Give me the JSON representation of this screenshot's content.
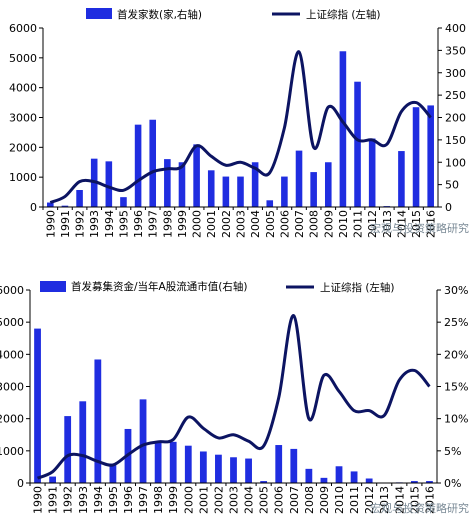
{
  "colors": {
    "bar": "#1f2de0",
    "line": "#0c1462",
    "axis": "#000000",
    "watermark": "#7a8a96"
  },
  "chart_data": [
    {
      "type": "bar",
      "categories": [
        "1990",
        "1991",
        "1992",
        "1993",
        "1994",
        "1995",
        "1996",
        "1997",
        "1998",
        "1999",
        "2000",
        "2001",
        "2002",
        "2003",
        "2004",
        "2005",
        "2006",
        "2007",
        "2008",
        "2009",
        "2010",
        "2011",
        "2012",
        "2013",
        "2014",
        "2015",
        "2016"
      ],
      "legend_position": "top",
      "grid": false,
      "left_axis": {
        "ylim": [
          0,
          6000
        ],
        "ticks": [
          "0",
          "1000",
          "2000",
          "3000",
          "4000",
          "5000",
          "6000"
        ]
      },
      "right_axis": {
        "ylim": [
          0,
          400
        ],
        "ticks": [
          "0",
          "50",
          "100",
          "150",
          "200",
          "250",
          "300",
          "350",
          "400"
        ]
      },
      "series": [
        {
          "name": "首发家数(家,右轴)",
          "type": "bar",
          "axis": "right",
          "values": [
            10,
            3,
            38,
            108,
            102,
            22,
            184,
            195,
            107,
            100,
            140,
            82,
            68,
            68,
            100,
            15,
            68,
            126,
            78,
            100,
            348,
            280,
            153,
            2,
            125,
            223,
            227
          ]
        },
        {
          "name": "上证综指 (左轴)",
          "type": "line",
          "axis": "left",
          "values": [
            150,
            350,
            850,
            850,
            670,
            560,
            880,
            1180,
            1280,
            1350,
            2050,
            1700,
            1400,
            1500,
            1300,
            1150,
            2650,
            5200,
            2000,
            3350,
            2850,
            2250,
            2250,
            2100,
            3200,
            3500,
            3000
          ]
        }
      ],
      "watermark": "宏观与投资策略研究"
    },
    {
      "type": "bar",
      "categories": [
        "1990",
        "1991",
        "1992",
        "1993",
        "1994",
        "1995",
        "1996",
        "1997",
        "1998",
        "1999",
        "2000",
        "2001",
        "2002",
        "2003",
        "2004",
        "2005",
        "2006",
        "2007",
        "2008",
        "2009",
        "2010",
        "2011",
        "2012",
        "2013",
        "2014",
        "2015",
        "2016"
      ],
      "legend_position": "top",
      "grid": false,
      "left_axis": {
        "ylim": [
          0,
          6000
        ],
        "ticks": [
          "0",
          "1000",
          "2000",
          "3000",
          "4000",
          "5000",
          "6000"
        ]
      },
      "right_axis": {
        "ylim": [
          0,
          0.3
        ],
        "ticks": [
          "0%",
          "5%",
          "10%",
          "15%",
          "20%",
          "25%",
          "30%"
        ]
      },
      "series": [
        {
          "name": "首发募集资金/当年A股流通市值(右轴)",
          "type": "bar",
          "axis": "right",
          "values": [
            0.24,
            0.01,
            0.104,
            0.127,
            0.192,
            0.03,
            0.084,
            0.13,
            0.065,
            0.064,
            0.058,
            0.049,
            0.044,
            0.04,
            0.038,
            0.003,
            0.059,
            0.053,
            0.022,
            0.008,
            0.026,
            0.018,
            0.007,
            0.0,
            0.001,
            0.003,
            0.003
          ]
        },
        {
          "name": "上证综指 (左轴)",
          "type": "line",
          "axis": "left",
          "values": [
            150,
            350,
            850,
            850,
            670,
            560,
            880,
            1180,
            1280,
            1350,
            2050,
            1700,
            1400,
            1500,
            1300,
            1150,
            2650,
            5200,
            2000,
            3350,
            2850,
            2250,
            2250,
            2100,
            3200,
            3500,
            3000
          ]
        }
      ],
      "watermark": "宏观与投资策略研究"
    }
  ]
}
